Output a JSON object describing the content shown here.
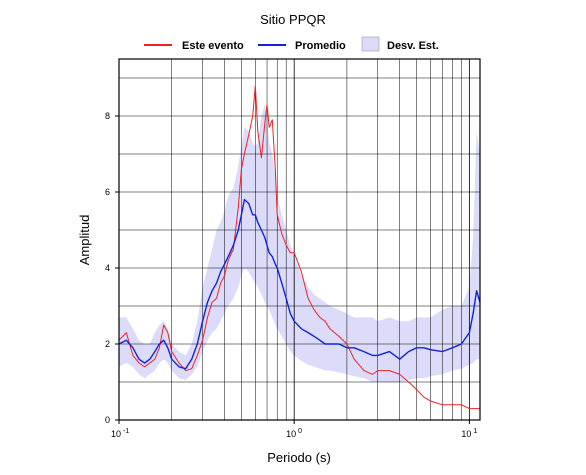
{
  "chart_data": {
    "type": "line",
    "title": "Sitio PPQR",
    "xlabel": "Periodo (s)",
    "ylabel": "Amplitud",
    "x_scale": "log",
    "xlim": [
      0.1,
      11.5
    ],
    "ylim": [
      0,
      9.5
    ],
    "grid": true,
    "legend_position": "top",
    "x_tick_labels": [
      {
        "base": "10",
        "exp": "-1",
        "value": 0.1
      },
      {
        "base": "10",
        "exp": "0",
        "value": 1
      },
      {
        "base": "10",
        "exp": "1",
        "value": 10
      }
    ],
    "y_ticks": [
      0,
      2,
      4,
      6,
      8
    ],
    "x": [
      0.1,
      0.11,
      0.12,
      0.13,
      0.14,
      0.15,
      0.16,
      0.17,
      0.18,
      0.19,
      0.2,
      0.22,
      0.24,
      0.26,
      0.28,
      0.3,
      0.32,
      0.34,
      0.36,
      0.38,
      0.4,
      0.42,
      0.45,
      0.48,
      0.5,
      0.52,
      0.55,
      0.58,
      0.6,
      0.62,
      0.65,
      0.68,
      0.7,
      0.72,
      0.75,
      0.78,
      0.8,
      0.85,
      0.9,
      0.95,
      1.0,
      1.1,
      1.2,
      1.3,
      1.4,
      1.5,
      1.6,
      1.8,
      2.0,
      2.2,
      2.5,
      2.8,
      3.0,
      3.5,
      4.0,
      4.5,
      5.0,
      5.5,
      6.0,
      7.0,
      8.0,
      9.0,
      10.0,
      10.5,
      11.0,
      11.5
    ],
    "series": [
      {
        "name": "Este evento",
        "color": "#ee2222",
        "values": [
          2.1,
          2.3,
          1.7,
          1.5,
          1.4,
          1.5,
          1.6,
          1.9,
          2.5,
          2.3,
          1.8,
          1.5,
          1.3,
          1.35,
          1.7,
          2.1,
          2.7,
          3.1,
          3.2,
          3.6,
          3.8,
          4.2,
          4.5,
          5.6,
          6.6,
          7.0,
          7.5,
          8.0,
          8.8,
          7.6,
          6.9,
          7.8,
          8.3,
          7.7,
          7.9,
          6.6,
          5.4,
          4.9,
          4.6,
          4.4,
          4.4,
          3.9,
          3.2,
          2.9,
          2.7,
          2.6,
          2.4,
          2.2,
          2.0,
          1.6,
          1.3,
          1.2,
          1.3,
          1.3,
          1.2,
          1.0,
          0.8,
          0.6,
          0.5,
          0.4,
          0.4,
          0.4,
          0.3,
          0.3,
          0.3,
          0.3
        ]
      },
      {
        "name": "Promedio",
        "color": "#1122dd",
        "values": [
          2.0,
          2.1,
          1.9,
          1.6,
          1.5,
          1.6,
          1.8,
          2.0,
          2.1,
          1.9,
          1.6,
          1.4,
          1.35,
          1.6,
          2.0,
          2.6,
          3.1,
          3.4,
          3.6,
          3.9,
          4.1,
          4.3,
          4.6,
          5.0,
          5.4,
          5.8,
          5.7,
          5.4,
          5.4,
          5.2,
          5.0,
          4.8,
          4.6,
          4.4,
          4.3,
          4.1,
          4.0,
          3.6,
          3.2,
          2.8,
          2.6,
          2.4,
          2.3,
          2.2,
          2.1,
          2.0,
          2.0,
          2.0,
          1.9,
          1.9,
          1.8,
          1.7,
          1.7,
          1.8,
          1.6,
          1.8,
          1.9,
          1.9,
          1.85,
          1.8,
          1.9,
          2.0,
          2.3,
          2.8,
          3.4,
          3.1
        ]
      }
    ],
    "band": {
      "name": "Desv. Est.",
      "color": "#dcdcfa",
      "lower": [
        1.4,
        1.5,
        1.4,
        1.2,
        1.1,
        1.2,
        1.3,
        1.5,
        1.6,
        1.5,
        1.3,
        1.1,
        1.05,
        1.2,
        1.4,
        1.8,
        2.1,
        2.3,
        2.4,
        2.6,
        2.8,
        3.0,
        3.2,
        3.5,
        3.8,
        4.0,
        3.9,
        3.7,
        3.6,
        3.5,
        3.3,
        3.1,
        3.0,
        2.9,
        2.7,
        2.5,
        2.4,
        2.2,
        2.0,
        1.8,
        1.7,
        1.55,
        1.45,
        1.4,
        1.35,
        1.3,
        1.3,
        1.25,
        1.2,
        1.15,
        1.1,
        1.0,
        1.0,
        1.0,
        1.0,
        1.05,
        1.1,
        1.1,
        1.15,
        1.2,
        1.3,
        1.35,
        1.45,
        1.5,
        1.6,
        1.6
      ],
      "upper": [
        2.7,
        2.7,
        2.4,
        2.1,
        2.0,
        2.0,
        2.3,
        2.5,
        2.6,
        2.4,
        2.0,
        1.8,
        1.7,
        2.0,
        2.6,
        3.5,
        4.0,
        4.5,
        5.0,
        5.2,
        5.5,
        5.9,
        6.1,
        6.7,
        7.2,
        7.7,
        7.6,
        7.3,
        7.2,
        7.3,
        8.0,
        8.3,
        7.9,
        7.3,
        7.0,
        6.4,
        5.9,
        5.4,
        5.0,
        4.6,
        4.3,
        3.8,
        3.5,
        3.3,
        3.2,
        3.1,
        3.0,
        2.9,
        2.8,
        2.7,
        2.7,
        2.7,
        2.6,
        2.7,
        2.6,
        2.6,
        2.7,
        2.7,
        2.7,
        2.9,
        3.0,
        3.0,
        3.5,
        4.8,
        7.6,
        7.0
      ]
    }
  }
}
